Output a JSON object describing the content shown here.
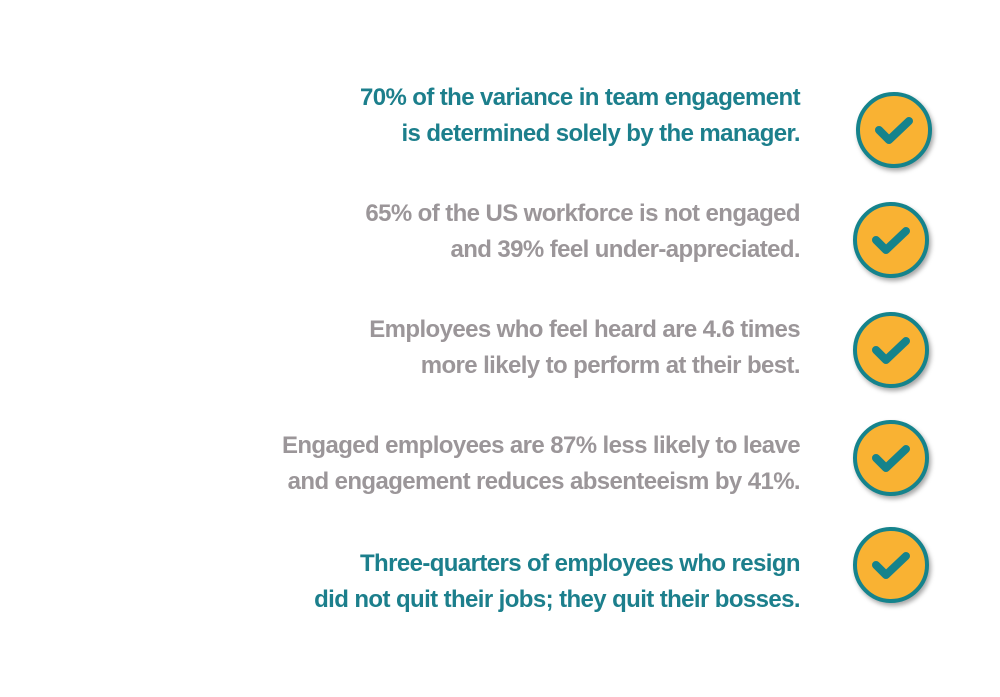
{
  "colors": {
    "teal": "#1c7f8c",
    "gray": "#9b9699",
    "check_fill": "#f9b233",
    "check_ring": "#15838c"
  },
  "stats": [
    {
      "lines": [
        "70% of the variance in team engagement",
        "is determined solely by the manager."
      ],
      "color": "teal",
      "icon": "check-circle-icon"
    },
    {
      "lines": [
        "65% of the US workforce is not engaged",
        "and 39% feel under-appreciated."
      ],
      "color": "gray",
      "icon": "check-circle-icon"
    },
    {
      "lines": [
        "Employees who feel heard are 4.6 times",
        "more likely to perform at their best."
      ],
      "color": "gray",
      "icon": "check-circle-icon"
    },
    {
      "lines": [
        "Engaged employees are 87% less likely to leave",
        "and engagement reduces absenteeism by 41%."
      ],
      "color": "gray",
      "icon": "check-circle-icon"
    },
    {
      "lines": [
        "Three-quarters of employees who resign",
        "did not quit their jobs; they quit their bosses."
      ],
      "color": "teal",
      "icon": "check-circle-icon"
    }
  ]
}
